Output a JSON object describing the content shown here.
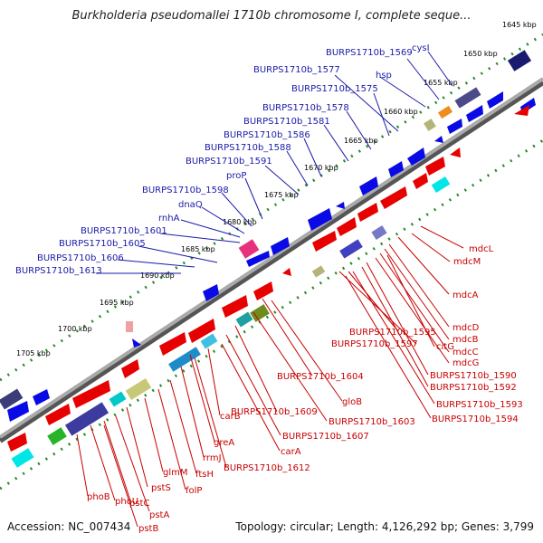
{
  "title": "Burkholderia pseudomallei 1710b chromosome I, complete seque...",
  "footer": {
    "accession": "Accession: NC_007434",
    "topology": "Topology: circular; Length: 4,126,292 bp; Genes: 3,799"
  },
  "colors": {
    "forward_gene": "#0a0ae6",
    "reverse_gene": "#e60000",
    "backbone": "#8c8c8c",
    "tick_dots": "#2a8a2a",
    "label_blue": "#1a1aa8",
    "label_red": "#c80000"
  },
  "kbp_labels": [
    "1645 kbp",
    "1650 kbp",
    "1655 kbp",
    "1660 kbp",
    "1665 kbp",
    "1670 kbp",
    "1675 kbp",
    "1680 kbp",
    "1685 kbp",
    "1690 kbp",
    "1695 kbp",
    "1700 kbp",
    "1705 kbp"
  ],
  "forward_gene_labels": [
    "cysI",
    "BURPS1710b_1569",
    "hsp",
    "BURPS1710b_1577",
    "BURPS1710b_1575",
    "BURPS1710b_1578",
    "BURPS1710b_1581",
    "BURPS1710b_1586",
    "BURPS1710b_1588",
    "BURPS1710b_1591",
    "proP",
    "BURPS1710b_1598",
    "dnaQ",
    "rnhA",
    "BURPS1710b_1601",
    "BURPS1710b_1605",
    "BURPS1710b_1606",
    "BURPS1710b_1613"
  ],
  "reverse_gene_labels_right": [
    "mdcL",
    "mdcM",
    "mdcA",
    "mdcD",
    "mdcB",
    "mdcC",
    "mdcG",
    "BURPS1710b_1590",
    "BURPS1710b_1592",
    "BURPS1710b_1593",
    "BURPS1710b_1594",
    "BURPS1710b_1595",
    "citG",
    "BURPS1710b_1597",
    "BURPS1710b_1604",
    "gloB",
    "BURPS1710b_1603",
    "BURPS1710b_1609",
    "BURPS1710b_1607",
    "carB",
    "carA",
    "greA",
    "rrmJ",
    "BURPS1710b_1612",
    "ftsH",
    "folP",
    "glmM",
    "pstS",
    "pstA",
    "pstC",
    "phoU",
    "phoB",
    "pstB"
  ]
}
